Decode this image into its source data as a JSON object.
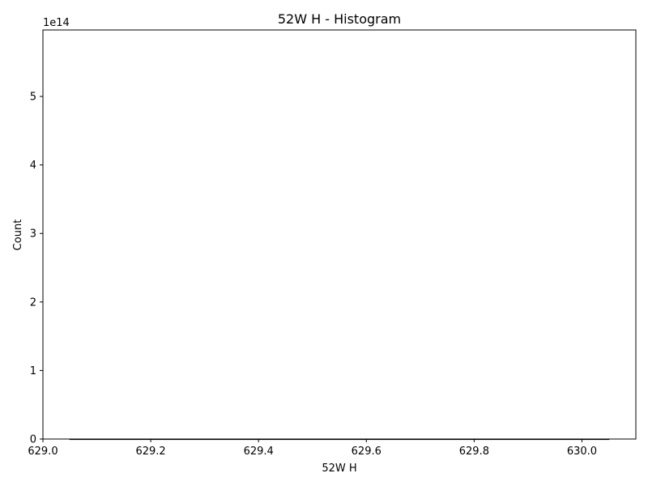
{
  "chart_data": {
    "type": "bar",
    "title": "52W H  - Histogram",
    "xlabel": "52W H",
    "ylabel": "Count",
    "offset_text": "1e14",
    "xlim": [
      629.0,
      630.1
    ],
    "ylim": [
      0,
      5.97
    ],
    "y_scale_exponent": 14,
    "x_ticks": [
      629.0,
      629.2,
      629.4,
      629.6,
      629.8,
      630.0
    ],
    "x_tick_labels": [
      "629.0",
      "629.2",
      "629.4",
      "629.6",
      "629.8",
      "630.0"
    ],
    "y_ticks": [
      0,
      1,
      2,
      3,
      4,
      5
    ],
    "y_tick_labels": [
      "0",
      "1",
      "2",
      "3",
      "4",
      "5"
    ],
    "bins": [
      {
        "start": 629.05,
        "end": 630.05,
        "count": 0
      }
    ],
    "colors": {
      "bar_edge": "#000000",
      "axis": "#000000",
      "background": "#ffffff"
    },
    "grid": false,
    "legend": "none"
  }
}
